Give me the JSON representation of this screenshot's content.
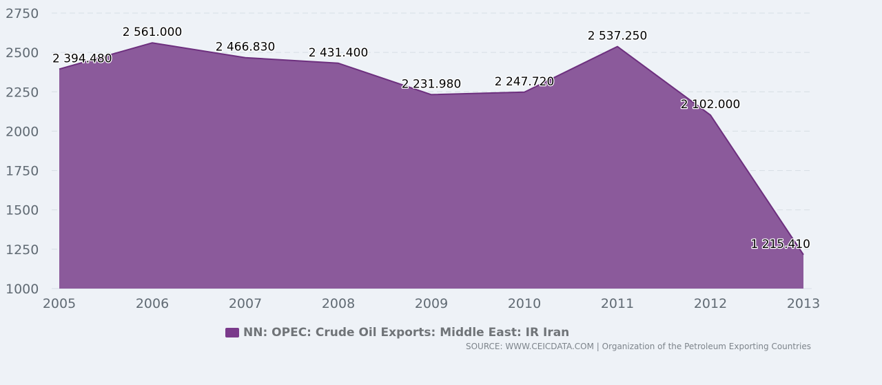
{
  "chart_data": {
    "type": "area",
    "title": "",
    "xlabel": "",
    "ylabel": "",
    "x": [
      "2005",
      "2006",
      "2007",
      "2008",
      "2009",
      "2010",
      "2011",
      "2012",
      "2013"
    ],
    "series": [
      {
        "name": "NN: OPEC: Crude Oil Exports: Middle East: IR Iran",
        "values": [
          2394.48,
          2561.0,
          2466.83,
          2431.4,
          2231.98,
          2247.72,
          2537.25,
          2102.0,
          1215.41
        ],
        "labels": [
          "2 394.480",
          "2 561.000",
          "2 466.830",
          "2 431.400",
          "2 231.980",
          "2 247.720",
          "2 537.250",
          "2 102.000",
          "1 215.410"
        ]
      }
    ],
    "yticks": [
      "1000",
      "1250",
      "1500",
      "1750",
      "2000",
      "2250",
      "2500",
      "2750"
    ],
    "ylim": [
      1000,
      2750
    ],
    "grid": true,
    "colors": {
      "fill": "#8b5a9b",
      "line": "#6d2f7e",
      "swatch": "#7a3a8b",
      "grid": "#d6dde4"
    }
  },
  "legend": {
    "label": "NN: OPEC: Crude Oil Exports: Middle East: IR Iran"
  },
  "source": {
    "text": "SOURCE: WWW.CEICDATA.COM | Organization of the Petroleum Exporting Countries"
  }
}
